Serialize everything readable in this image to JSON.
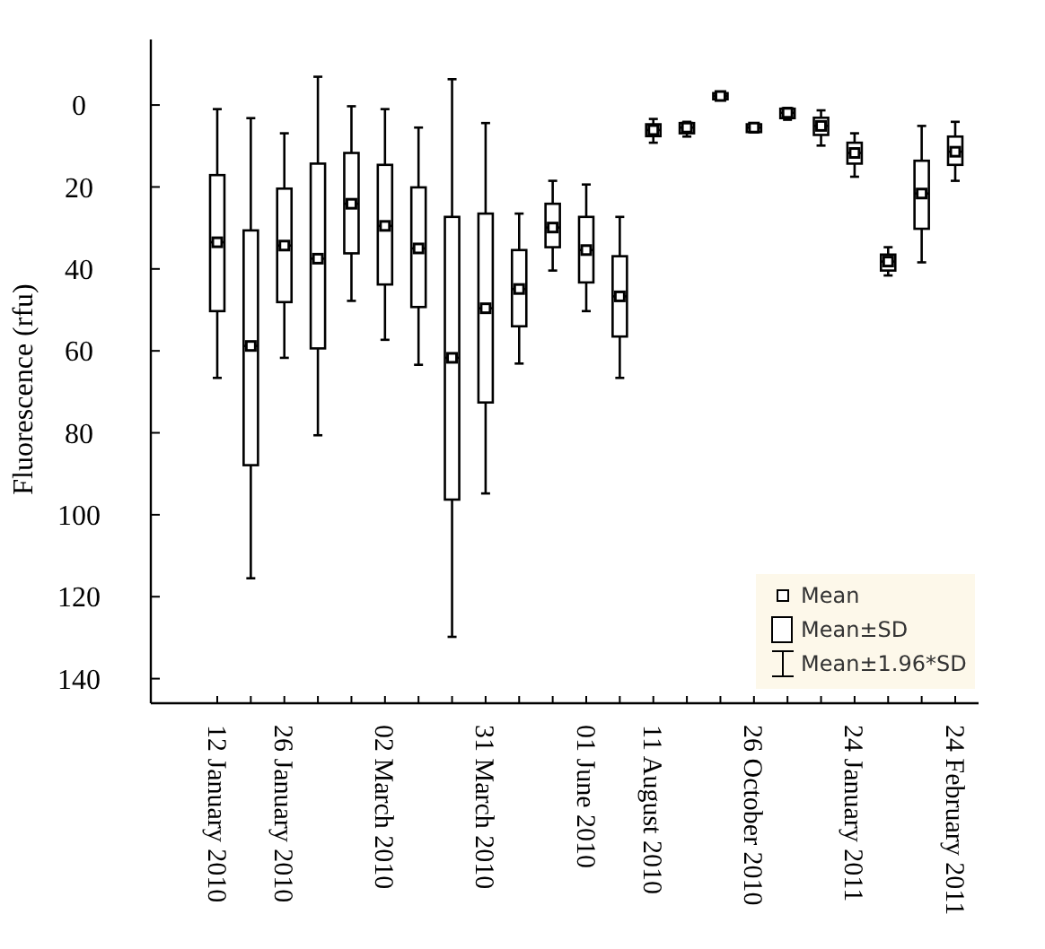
{
  "chart_data": {
    "type": "box",
    "ylabel": "Fluorescence (rfu)",
    "categories": [
      "12 January 2010",
      null,
      "26 January 2010",
      null,
      null,
      "02 March 2010",
      null,
      null,
      "31 March 2010",
      null,
      null,
      "01 June 2010",
      null,
      "11 August 2010",
      null,
      null,
      "26 October 2010",
      null,
      null,
      "24 January 2011",
      null,
      null,
      "24 February 2011"
    ],
    "boxes": [
      {
        "low": 1.0,
        "q1": 17.1,
        "median": 33.5,
        "mean": 33.5,
        "q3": 50.3,
        "high": 66.6
      },
      {
        "low": 3.2,
        "q1": 30.6,
        "median": 58.8,
        "mean": 58.8,
        "q3": 87.9,
        "high": 115.5
      },
      {
        "low": 6.9,
        "q1": 20.4,
        "median": 34.3,
        "mean": 34.3,
        "q3": 48.1,
        "high": 61.7
      },
      {
        "low": -6.9,
        "q1": 14.3,
        "median": 37.5,
        "mean": 37.5,
        "q3": 59.4,
        "high": 80.6
      },
      {
        "low": 0.3,
        "q1": 11.7,
        "median": 24.1,
        "mean": 24.1,
        "q3": 36.2,
        "high": 47.8
      },
      {
        "low": 1.0,
        "q1": 14.6,
        "median": 29.5,
        "mean": 29.5,
        "q3": 43.8,
        "high": 57.3
      },
      {
        "low": 5.5,
        "q1": 20.1,
        "median": 35.0,
        "mean": 35.0,
        "q3": 49.3,
        "high": 63.4
      },
      {
        "low": -6.3,
        "q1": 27.3,
        "median": 61.7,
        "mean": 61.7,
        "q3": 96.3,
        "high": 129.8
      },
      {
        "low": 4.4,
        "q1": 26.5,
        "median": 49.6,
        "mean": 49.6,
        "q3": 72.6,
        "high": 94.8
      },
      {
        "low": 26.5,
        "q1": 35.4,
        "median": 44.9,
        "mean": 44.9,
        "q3": 54.0,
        "high": 63.1
      },
      {
        "low": 18.5,
        "q1": 24.1,
        "median": 29.9,
        "mean": 29.9,
        "q3": 34.7,
        "high": 40.4
      },
      {
        "low": 19.4,
        "q1": 27.3,
        "median": 35.4,
        "mean": 35.4,
        "q3": 43.3,
        "high": 50.3
      },
      {
        "low": 27.3,
        "q1": 36.9,
        "median": 46.7,
        "mean": 46.7,
        "q3": 56.5,
        "high": 66.6
      },
      {
        "low": 3.4,
        "q1": 4.7,
        "median": 6.1,
        "mean": 6.1,
        "q3": 7.6,
        "high": 9.2
      },
      {
        "low": 4.1,
        "q1": 4.4,
        "median": 5.5,
        "mean": 5.5,
        "q3": 6.9,
        "high": 7.7
      },
      {
        "low": -3.0,
        "q1": -2.9,
        "median": -2.2,
        "mean": -2.2,
        "q3": -1.4,
        "high": -1.2
      },
      {
        "low": 4.5,
        "q1": 4.7,
        "median": 5.5,
        "mean": 5.5,
        "q3": 6.6,
        "high": 6.7
      },
      {
        "low": 0.7,
        "q1": 0.9,
        "median": 1.9,
        "mean": 1.9,
        "q3": 3.2,
        "high": 3.6
      },
      {
        "low": 1.3,
        "q1": 3.1,
        "median": 5.1,
        "mean": 5.1,
        "q3": 7.3,
        "high": 9.9
      },
      {
        "low": 6.9,
        "q1": 9.2,
        "median": 11.7,
        "mean": 11.7,
        "q3": 14.3,
        "high": 17.5
      },
      {
        "low": 34.7,
        "q1": 36.5,
        "median": 38.2,
        "mean": 38.2,
        "q3": 40.4,
        "high": 41.6
      },
      {
        "low": 5.1,
        "q1": 13.6,
        "median": 21.6,
        "mean": 21.6,
        "q3": 30.2,
        "high": 38.4
      },
      {
        "low": 4.1,
        "q1": 7.7,
        "median": 11.4,
        "mean": 11.4,
        "q3": 14.6,
        "high": 18.5
      }
    ],
    "ylim": [
      146,
      -16
    ],
    "yticks": [
      0,
      20,
      40,
      60,
      80,
      100,
      120,
      140
    ],
    "annotations": [
      "Mean",
      "Mean±SD",
      "Mean±1.96*SD"
    ]
  }
}
